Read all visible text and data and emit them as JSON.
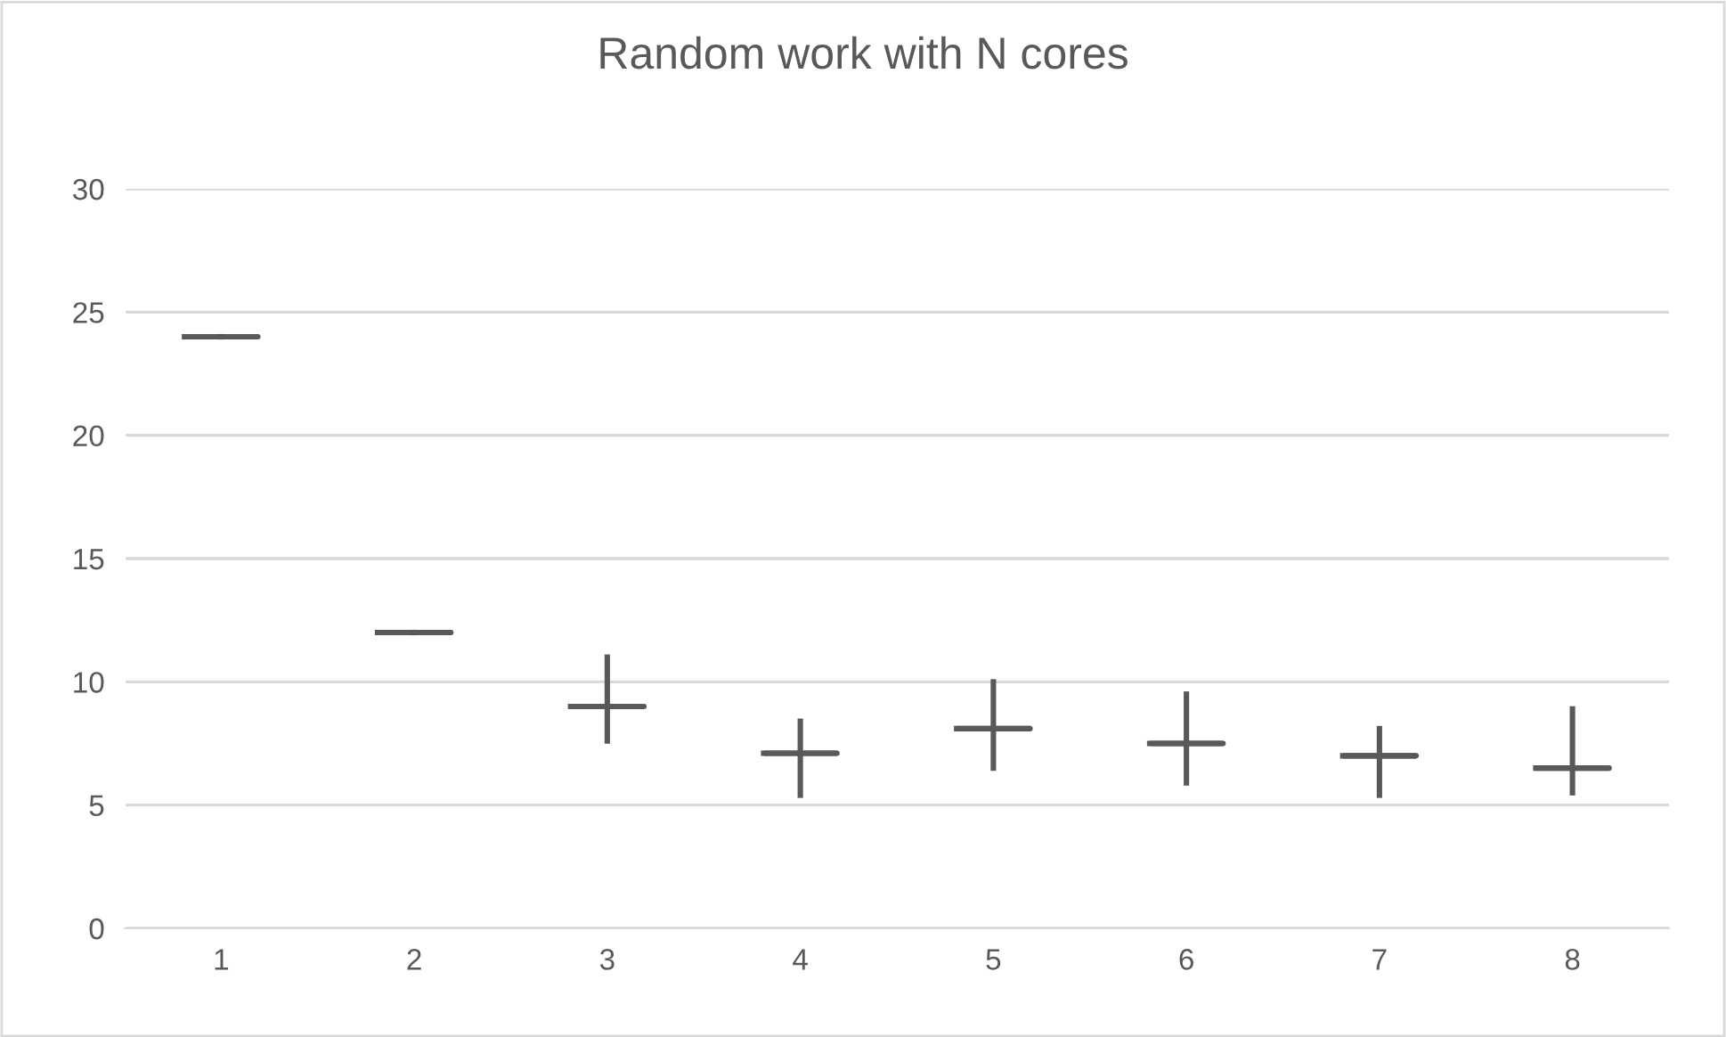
{
  "chart_data": {
    "type": "box",
    "title": "Random work with N cores",
    "categories": [
      "1",
      "2",
      "3",
      "4",
      "5",
      "6",
      "7",
      "8"
    ],
    "series": [
      {
        "color": "#595959",
        "boxes": [
          {
            "low": 24,
            "q1": 24,
            "median": 24,
            "q3": 24,
            "high": 24
          },
          {
            "low": 12,
            "q1": 12,
            "median": 12,
            "q3": 12,
            "high": 12
          },
          {
            "low": 7.6,
            "q1": 9.0,
            "median": 9.0,
            "q3": 9.0,
            "high": 11.0
          },
          {
            "low": 5.4,
            "q1": 7.1,
            "median": 7.1,
            "q3": 7.1,
            "high": 8.4
          },
          {
            "low": 6.5,
            "q1": 8.1,
            "median": 8.1,
            "q3": 8.1,
            "high": 10.0
          },
          {
            "low": 5.9,
            "q1": 7.5,
            "median": 7.5,
            "q3": 7.5,
            "high": 9.5
          },
          {
            "low": 5.4,
            "q1": 7.0,
            "median": 7.0,
            "q3": 7.0,
            "high": 8.1
          },
          {
            "low": 5.5,
            "q1": 6.5,
            "median": 6.5,
            "q3": 6.5,
            "high": 8.9
          }
        ]
      }
    ],
    "ylim": [
      0,
      30
    ],
    "yticks": [
      0,
      5,
      10,
      15,
      20,
      25,
      30
    ],
    "grid": "y",
    "legend": false
  }
}
